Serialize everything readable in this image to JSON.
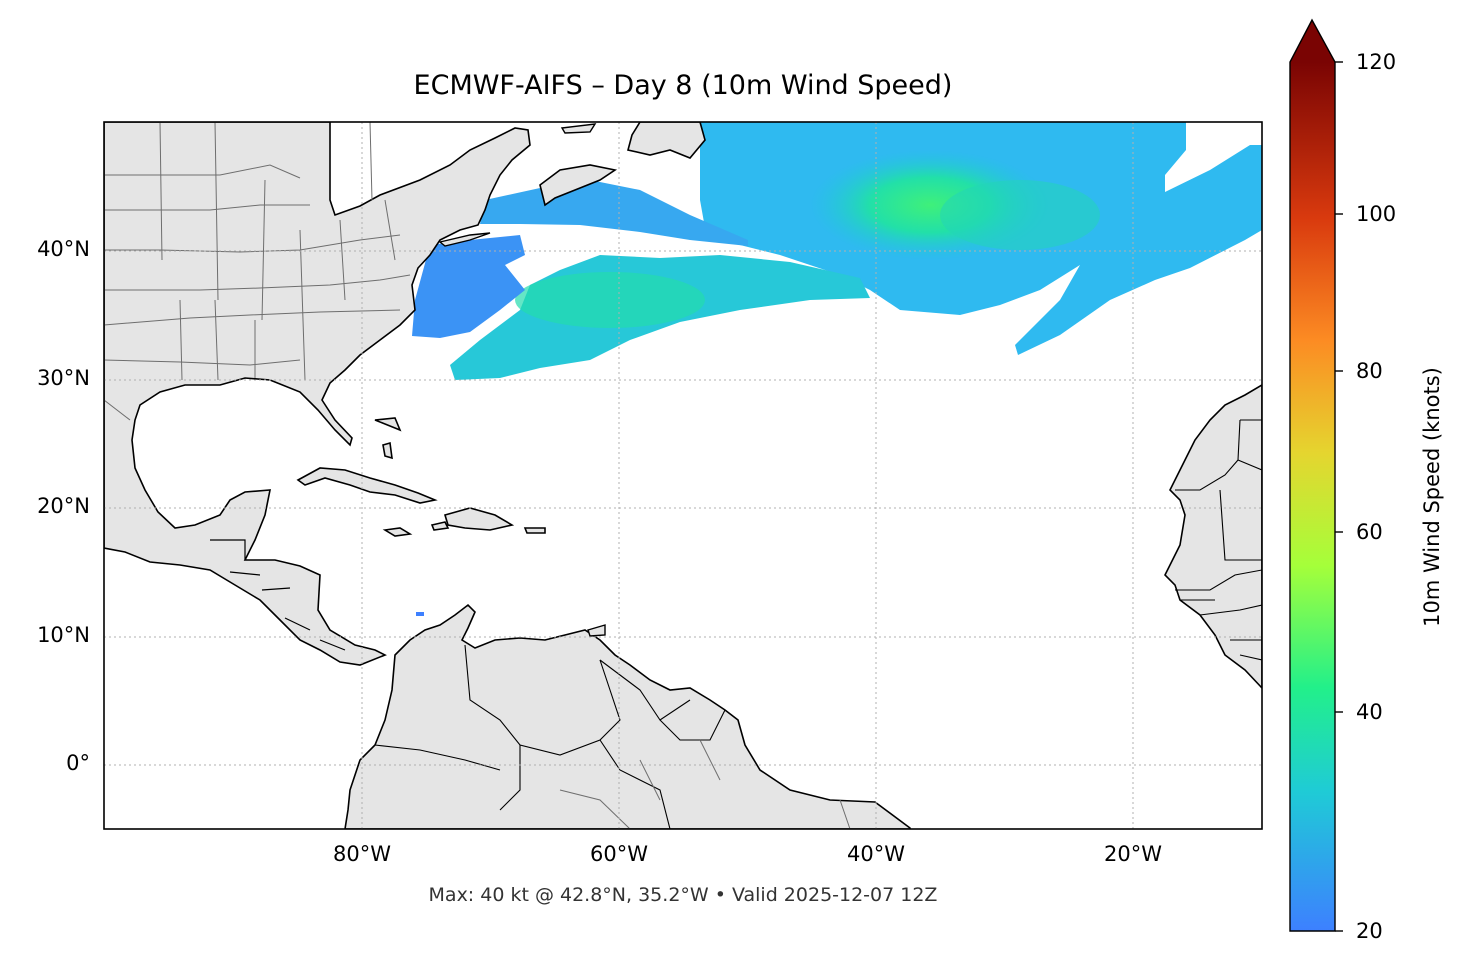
{
  "title": "ECMWF-AIFS – Day 8 (10m Wind Speed)",
  "footer": "Max: 40 kt @ 42.8°N, 35.2°W • Valid 2025-12-07 12Z",
  "axes": {
    "lat_labels": [
      "40°N",
      "30°N",
      "20°N",
      "10°N",
      "0°"
    ],
    "lon_labels": [
      "80°W",
      "60°W",
      "40°W",
      "20°W"
    ]
  },
  "colorbar": {
    "title": "10m Wind Speed (knots)",
    "ticks": [
      "120",
      "100",
      "80",
      "60",
      "40",
      "20"
    ],
    "min": 20,
    "max": 120,
    "extend": "max",
    "colormap": [
      "#3d80ff",
      "#1fcbd6",
      "#22f08a",
      "#a5ff3a",
      "#e5d52f",
      "#fc8b23",
      "#d93a0e",
      "#7a0403"
    ]
  },
  "map": {
    "land_color": "#e5e5e5",
    "ocean_color": "#ffffff",
    "extent": {
      "lon": [
        -100,
        -10
      ],
      "lat": [
        -5,
        50
      ]
    }
  }
}
